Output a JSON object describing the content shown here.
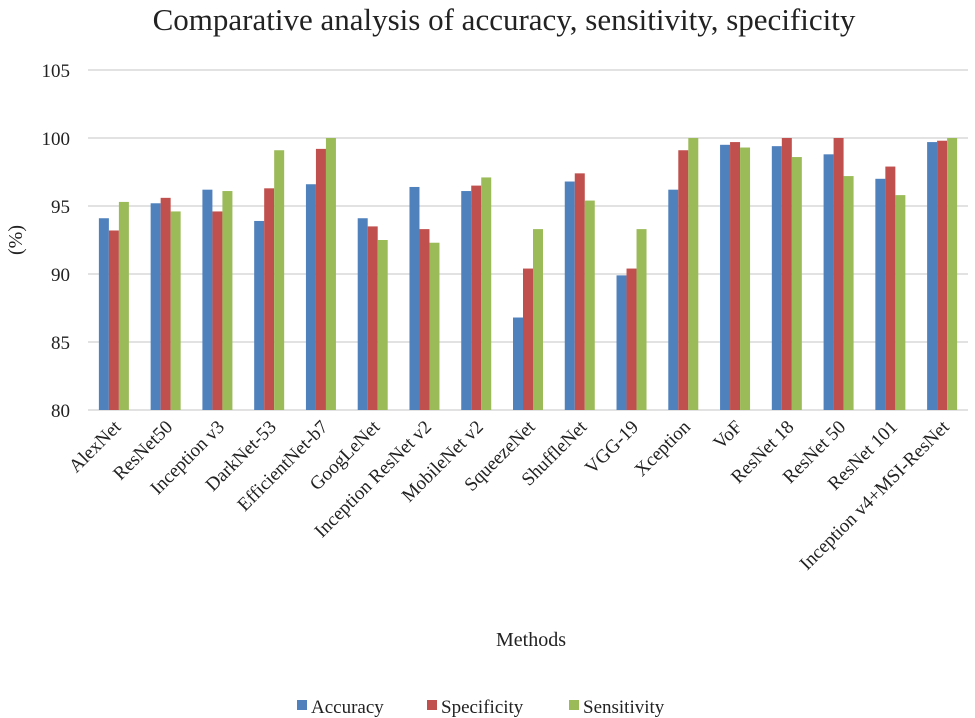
{
  "chart_data": {
    "type": "bar",
    "title": "Comparative analysis of accuracy, sensitivity, specificity",
    "xlabel": "Methods",
    "ylabel": "(%)",
    "ylim": [
      80,
      105
    ],
    "yticks": [
      80,
      85,
      90,
      95,
      100,
      105
    ],
    "grid": true,
    "legend_position": "bottom",
    "categories": [
      "AlexNet",
      "ResNet50",
      "Inception v3",
      "DarkNet-53",
      "EfficientNet-b7",
      "GoogLeNet",
      "Inception ResNet v2",
      "MobileNet v2",
      "SqueezeNet",
      "ShuffleNet",
      "VGG-19",
      "Xception",
      "VoF",
      "ResNet 18",
      "ResNet 50",
      "ResNet 101",
      "Inception v4+MSI-ResNet"
    ],
    "series": [
      {
        "name": "Accuracy",
        "color": "#4f81bd",
        "values": [
          94.1,
          95.2,
          96.2,
          93.9,
          96.6,
          94.1,
          96.4,
          96.1,
          86.8,
          96.8,
          89.9,
          96.2,
          99.5,
          99.4,
          98.8,
          97.0,
          99.7
        ]
      },
      {
        "name": "Specificity",
        "color": "#c0504d",
        "values": [
          93.2,
          95.6,
          94.6,
          96.3,
          99.2,
          93.5,
          93.3,
          96.5,
          90.4,
          97.4,
          90.4,
          99.1,
          99.7,
          100.0,
          100.0,
          97.9,
          99.8
        ]
      },
      {
        "name": "Sensitivity",
        "color": "#9bbb59",
        "values": [
          95.3,
          94.6,
          96.1,
          99.1,
          100.0,
          92.5,
          92.3,
          97.1,
          93.3,
          95.4,
          93.3,
          100.0,
          99.3,
          98.6,
          97.2,
          95.8,
          100.0
        ]
      }
    ]
  }
}
